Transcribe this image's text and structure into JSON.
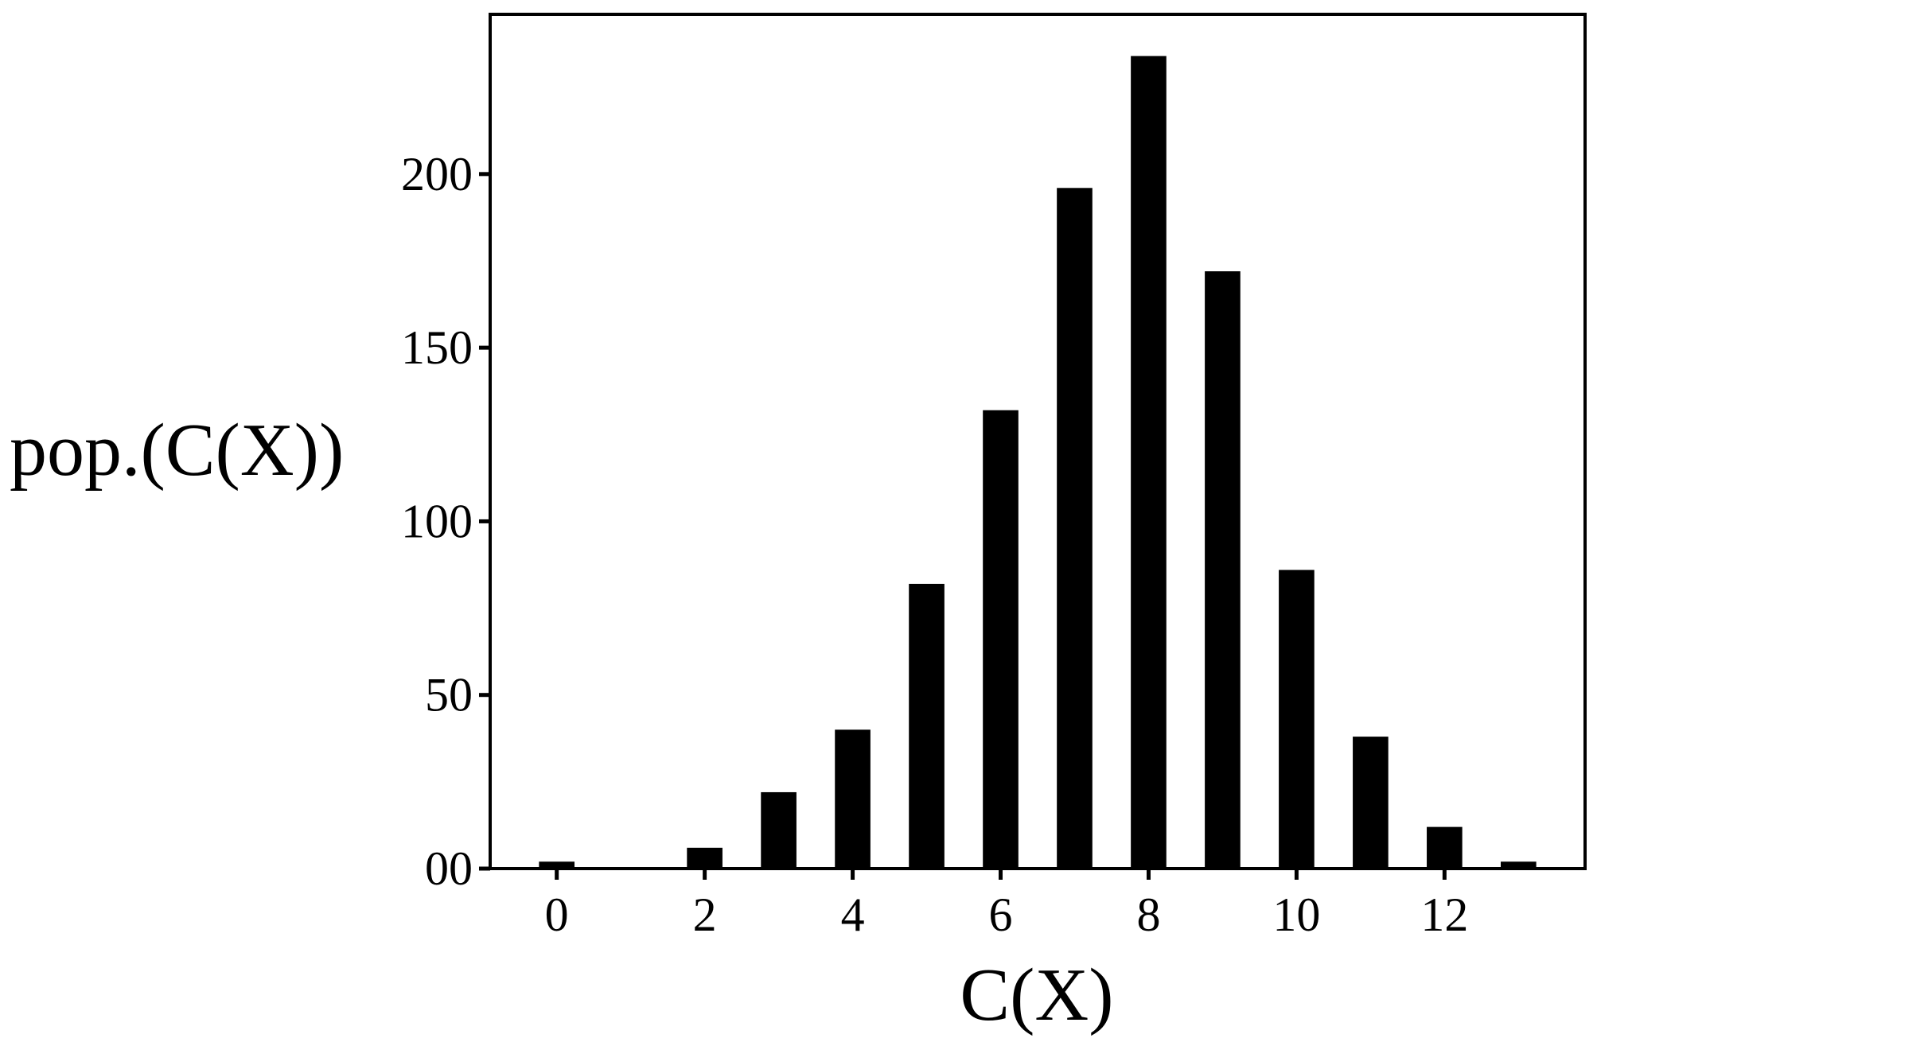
{
  "chart_data": {
    "type": "bar",
    "xlabel": "C(X)",
    "ylabel": "pop.(C(X))",
    "x": [
      0,
      2,
      3,
      4,
      5,
      6,
      7,
      8,
      9,
      10,
      11,
      12,
      13
    ],
    "values": [
      2,
      6,
      22,
      40,
      82,
      132,
      196,
      234,
      172,
      86,
      38,
      12,
      2
    ],
    "xlim": [
      -0.9,
      13.9
    ],
    "ylim": [
      0,
      246
    ],
    "x_ticks": [
      0,
      2,
      4,
      6,
      8,
      10,
      12
    ],
    "x_tick_labels": [
      "0",
      "2",
      "4",
      "6",
      "8",
      "10",
      "12"
    ],
    "y_ticks": [
      0,
      50,
      100,
      150,
      200
    ],
    "y_tick_labels": [
      "00",
      "50",
      "100",
      "150",
      "200"
    ],
    "grid": false,
    "legend": "none",
    "bar_color": "#000000"
  }
}
